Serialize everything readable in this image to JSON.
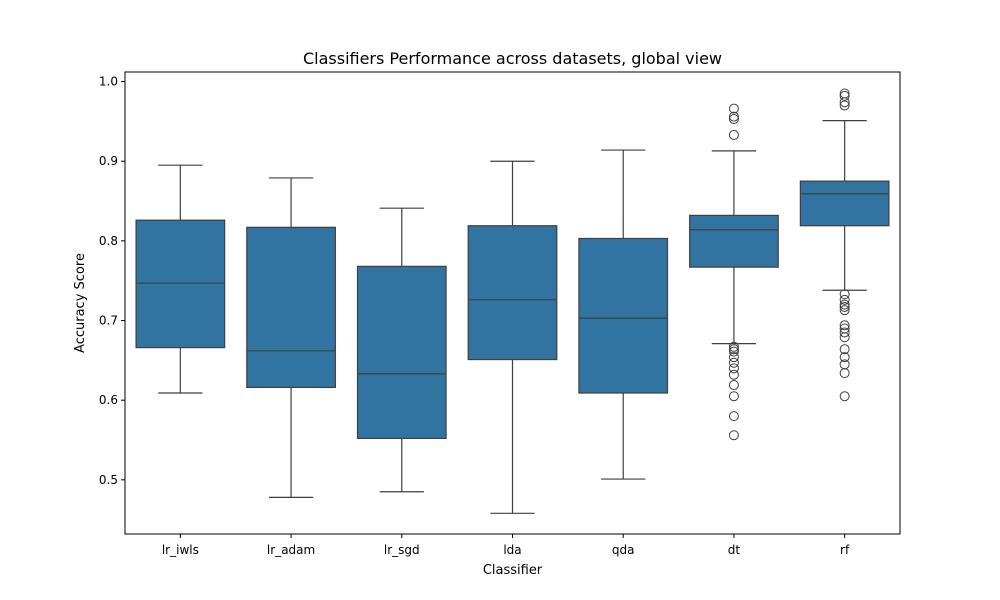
{
  "chart_data": {
    "type": "box",
    "title": "Classifiers Performance across datasets, global view",
    "xlabel": "Classifier",
    "ylabel": "Accuracy Score",
    "ylim": [
      0.432,
      1.012
    ],
    "yticks": [
      0.5,
      0.6,
      0.7,
      0.8,
      0.9,
      1.0
    ],
    "ytick_labels": [
      "0.5",
      "0.6",
      "0.7",
      "0.8",
      "0.9",
      "1.0"
    ],
    "categories": [
      "lr_iwls",
      "lr_adam",
      "lr_sgd",
      "lda",
      "qda",
      "dt",
      "rf"
    ],
    "box_color": "#3274a1",
    "line_color": "#3f3f3f",
    "grid": false,
    "boxes": [
      {
        "name": "lr_iwls",
        "whisker_low": 0.609,
        "q1": 0.666,
        "median": 0.747,
        "q3": 0.826,
        "whisker_high": 0.895,
        "outliers": []
      },
      {
        "name": "lr_adam",
        "whisker_low": 0.478,
        "q1": 0.616,
        "median": 0.662,
        "q3": 0.817,
        "whisker_high": 0.879,
        "outliers": []
      },
      {
        "name": "lr_sgd",
        "whisker_low": 0.485,
        "q1": 0.552,
        "median": 0.633,
        "q3": 0.768,
        "whisker_high": 0.841,
        "outliers": []
      },
      {
        "name": "lda",
        "whisker_low": 0.458,
        "q1": 0.651,
        "median": 0.726,
        "q3": 0.819,
        "whisker_high": 0.9,
        "outliers": []
      },
      {
        "name": "qda",
        "whisker_low": 0.501,
        "q1": 0.609,
        "median": 0.703,
        "q3": 0.803,
        "whisker_high": 0.914,
        "outliers": []
      },
      {
        "name": "dt",
        "whisker_low": 0.671,
        "q1": 0.767,
        "median": 0.814,
        "q3": 0.832,
        "whisker_high": 0.913,
        "outliers": [
          0.966,
          0.956,
          0.953,
          0.933,
          0.667,
          0.664,
          0.661,
          0.654,
          0.647,
          0.64,
          0.632,
          0.619,
          0.605,
          0.58,
          0.556
        ]
      },
      {
        "name": "rf",
        "whisker_low": 0.738,
        "q1": 0.819,
        "median": 0.859,
        "q3": 0.875,
        "whisker_high": 0.951,
        "outliers": [
          0.985,
          0.982,
          0.974,
          0.97,
          0.733,
          0.726,
          0.72,
          0.717,
          0.713,
          0.694,
          0.69,
          0.685,
          0.679,
          0.664,
          0.654,
          0.645,
          0.634,
          0.605
        ]
      }
    ]
  }
}
